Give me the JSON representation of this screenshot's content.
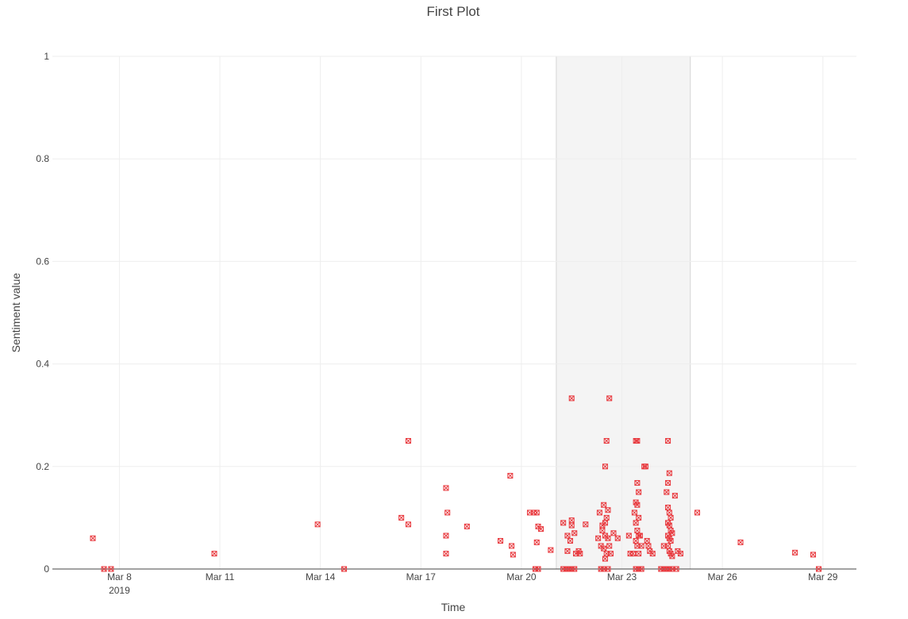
{
  "chart_data": {
    "type": "scatter",
    "title": "First Plot",
    "xlabel": "Time",
    "ylabel": "Sentiment value",
    "x_axis": {
      "type": "date",
      "range": [
        "2019-03-06T00:00",
        "2019-03-30T00:00"
      ],
      "ticks": [
        {
          "date": "2019-03-08",
          "label": "Mar 8",
          "sublabel": "2019"
        },
        {
          "date": "2019-03-11",
          "label": "Mar 11",
          "sublabel": ""
        },
        {
          "date": "2019-03-14",
          "label": "Mar 14",
          "sublabel": ""
        },
        {
          "date": "2019-03-17",
          "label": "Mar 17",
          "sublabel": ""
        },
        {
          "date": "2019-03-20",
          "label": "Mar 20",
          "sublabel": ""
        },
        {
          "date": "2019-03-23",
          "label": "Mar 23",
          "sublabel": ""
        },
        {
          "date": "2019-03-26",
          "label": "Mar 26",
          "sublabel": ""
        },
        {
          "date": "2019-03-29",
          "label": "Mar 29",
          "sublabel": ""
        }
      ]
    },
    "y_axis": {
      "range": [
        0,
        1
      ],
      "ticks": [
        {
          "value": 0,
          "label": "0"
        },
        {
          "value": 0.2,
          "label": "0.2"
        },
        {
          "value": 0.4,
          "label": "0.4"
        },
        {
          "value": 0.6,
          "label": "0.6"
        },
        {
          "value": 0.8,
          "label": "0.8"
        },
        {
          "value": 1,
          "label": "1"
        }
      ]
    },
    "grid": true,
    "marker": {
      "symbol": "square-x-open",
      "color": "#e8383d"
    },
    "highlight_region": {
      "x0": "2019-03-21T01:00",
      "x1": "2019-03-25T01:00",
      "fill": "#f4f4f4"
    },
    "series": [
      {
        "points": [
          [
            "2019-03-07T05:00",
            0.06
          ],
          [
            "2019-03-07T13:00",
            0.0
          ],
          [
            "2019-03-07T18:00",
            0.0
          ],
          [
            "2019-03-10T20:00",
            0.03
          ],
          [
            "2019-03-13T22:00",
            0.087
          ],
          [
            "2019-03-14T17:00",
            0.0
          ],
          [
            "2019-03-16T10:00",
            0.1
          ],
          [
            "2019-03-16T15:00",
            0.087
          ],
          [
            "2019-03-16T15:00",
            0.25
          ],
          [
            "2019-03-17T18:00",
            0.158
          ],
          [
            "2019-03-17T19:00",
            0.11
          ],
          [
            "2019-03-17T18:00",
            0.065
          ],
          [
            "2019-03-17T18:00",
            0.03
          ],
          [
            "2019-03-18T09:00",
            0.083
          ],
          [
            "2019-03-19T09:00",
            0.055
          ],
          [
            "2019-03-19T16:00",
            0.182
          ],
          [
            "2019-03-19T17:00",
            0.045
          ],
          [
            "2019-03-19T18:00",
            0.028
          ],
          [
            "2019-03-20T06:00",
            0.11
          ],
          [
            "2019-03-20T09:00",
            0.11
          ],
          [
            "2019-03-20T11:00",
            0.11
          ],
          [
            "2019-03-20T11:00",
            0.052
          ],
          [
            "2019-03-20T12:00",
            0.083
          ],
          [
            "2019-03-20T14:00",
            0.078
          ],
          [
            "2019-03-20T10:00",
            0.0
          ],
          [
            "2019-03-20T12:00",
            0.0
          ],
          [
            "2019-03-20T21:00",
            0.037
          ],
          [
            "2019-03-21T06:00",
            0.09
          ],
          [
            "2019-03-21T09:00",
            0.065
          ],
          [
            "2019-03-21T09:00",
            0.035
          ],
          [
            "2019-03-21T12:00",
            0.333
          ],
          [
            "2019-03-21T12:00",
            0.095
          ],
          [
            "2019-03-21T12:00",
            0.085
          ],
          [
            "2019-03-21T14:00",
            0.07
          ],
          [
            "2019-03-21T11:00",
            0.055
          ],
          [
            "2019-03-21T15:00",
            0.03
          ],
          [
            "2019-03-21T17:00",
            0.035
          ],
          [
            "2019-03-21T18:00",
            0.03
          ],
          [
            "2019-03-21T06:00",
            0.0
          ],
          [
            "2019-03-21T08:00",
            0.0
          ],
          [
            "2019-03-21T10:00",
            0.0
          ],
          [
            "2019-03-21T12:00",
            0.0
          ],
          [
            "2019-03-21T14:00",
            0.0
          ],
          [
            "2019-03-21T22:00",
            0.087
          ],
          [
            "2019-03-22T07:00",
            0.06
          ],
          [
            "2019-03-22T08:00",
            0.11
          ],
          [
            "2019-03-22T10:00",
            0.085
          ],
          [
            "2019-03-22T11:00",
            0.125
          ],
          [
            "2019-03-22T12:00",
            0.2
          ],
          [
            "2019-03-22T13:00",
            0.25
          ],
          [
            "2019-03-22T15:00",
            0.333
          ],
          [
            "2019-03-22T14:00",
            0.115
          ],
          [
            "2019-03-22T13:00",
            0.1
          ],
          [
            "2019-03-22T12:00",
            0.09
          ],
          [
            "2019-03-22T10:00",
            0.075
          ],
          [
            "2019-03-22T12:00",
            0.065
          ],
          [
            "2019-03-22T14:00",
            0.06
          ],
          [
            "2019-03-22T09:00",
            0.045
          ],
          [
            "2019-03-22T11:00",
            0.04
          ],
          [
            "2019-03-22T13:00",
            0.03
          ],
          [
            "2019-03-22T12:00",
            0.02
          ],
          [
            "2019-03-22T15:00",
            0.045
          ],
          [
            "2019-03-22T16:00",
            0.03
          ],
          [
            "2019-03-22T18:00",
            0.07
          ],
          [
            "2019-03-22T21:00",
            0.06
          ],
          [
            "2019-03-22T09:00",
            0.0
          ],
          [
            "2019-03-22T11:00",
            0.0
          ],
          [
            "2019-03-22T14:00",
            0.0
          ],
          [
            "2019-03-23T05:00",
            0.065
          ],
          [
            "2019-03-23T06:00",
            0.03
          ],
          [
            "2019-03-23T08:00",
            0.03
          ],
          [
            "2019-03-23T09:00",
            0.11
          ],
          [
            "2019-03-23T10:00",
            0.25
          ],
          [
            "2019-03-23T11:00",
            0.25
          ],
          [
            "2019-03-23T11:00",
            0.168
          ],
          [
            "2019-03-23T12:00",
            0.15
          ],
          [
            "2019-03-23T10:00",
            0.13
          ],
          [
            "2019-03-23T11:00",
            0.125
          ],
          [
            "2019-03-23T12:00",
            0.1
          ],
          [
            "2019-03-23T10:00",
            0.09
          ],
          [
            "2019-03-23T11:00",
            0.075
          ],
          [
            "2019-03-23T12:00",
            0.065
          ],
          [
            "2019-03-23T10:00",
            0.055
          ],
          [
            "2019-03-23T11:00",
            0.045
          ],
          [
            "2019-03-23T12:00",
            0.03
          ],
          [
            "2019-03-23T13:00",
            0.065
          ],
          [
            "2019-03-23T14:00",
            0.045
          ],
          [
            "2019-03-23T16:00",
            0.2
          ],
          [
            "2019-03-23T17:00",
            0.2
          ],
          [
            "2019-03-23T18:00",
            0.055
          ],
          [
            "2019-03-23T19:00",
            0.045
          ],
          [
            "2019-03-23T20:00",
            0.035
          ],
          [
            "2019-03-23T22:00",
            0.03
          ],
          [
            "2019-03-23T10:00",
            0.0
          ],
          [
            "2019-03-23T12:00",
            0.0
          ],
          [
            "2019-03-23T14:00",
            0.0
          ],
          [
            "2019-03-24T06:00",
            0.045
          ],
          [
            "2019-03-24T09:00",
            0.25
          ],
          [
            "2019-03-24T09:00",
            0.168
          ],
          [
            "2019-03-24T10:00",
            0.187
          ],
          [
            "2019-03-24T08:00",
            0.15
          ],
          [
            "2019-03-24T09:00",
            0.12
          ],
          [
            "2019-03-24T10:00",
            0.11
          ],
          [
            "2019-03-24T11:00",
            0.1
          ],
          [
            "2019-03-24T09:00",
            0.09
          ],
          [
            "2019-03-24T10:00",
            0.085
          ],
          [
            "2019-03-24T11:00",
            0.075
          ],
          [
            "2019-03-24T12:00",
            0.07
          ],
          [
            "2019-03-24T09:00",
            0.065
          ],
          [
            "2019-03-24T10:00",
            0.06
          ],
          [
            "2019-03-24T11:00",
            0.055
          ],
          [
            "2019-03-24T09:00",
            0.045
          ],
          [
            "2019-03-24T10:00",
            0.035
          ],
          [
            "2019-03-24T11:00",
            0.03
          ],
          [
            "2019-03-24T12:00",
            0.025
          ],
          [
            "2019-03-24T14:00",
            0.143
          ],
          [
            "2019-03-24T16:00",
            0.035
          ],
          [
            "2019-03-24T18:00",
            0.03
          ],
          [
            "2019-03-24T04:00",
            0.0
          ],
          [
            "2019-03-24T06:00",
            0.0
          ],
          [
            "2019-03-24T08:00",
            0.0
          ],
          [
            "2019-03-24T10:00",
            0.0
          ],
          [
            "2019-03-24T12:00",
            0.0
          ],
          [
            "2019-03-24T15:00",
            0.0
          ],
          [
            "2019-03-25T06:00",
            0.11
          ],
          [
            "2019-03-26T13:00",
            0.052
          ],
          [
            "2019-03-28T04:00",
            0.032
          ],
          [
            "2019-03-28T17:00",
            0.028
          ],
          [
            "2019-03-28T21:00",
            0.0
          ]
        ]
      }
    ]
  }
}
